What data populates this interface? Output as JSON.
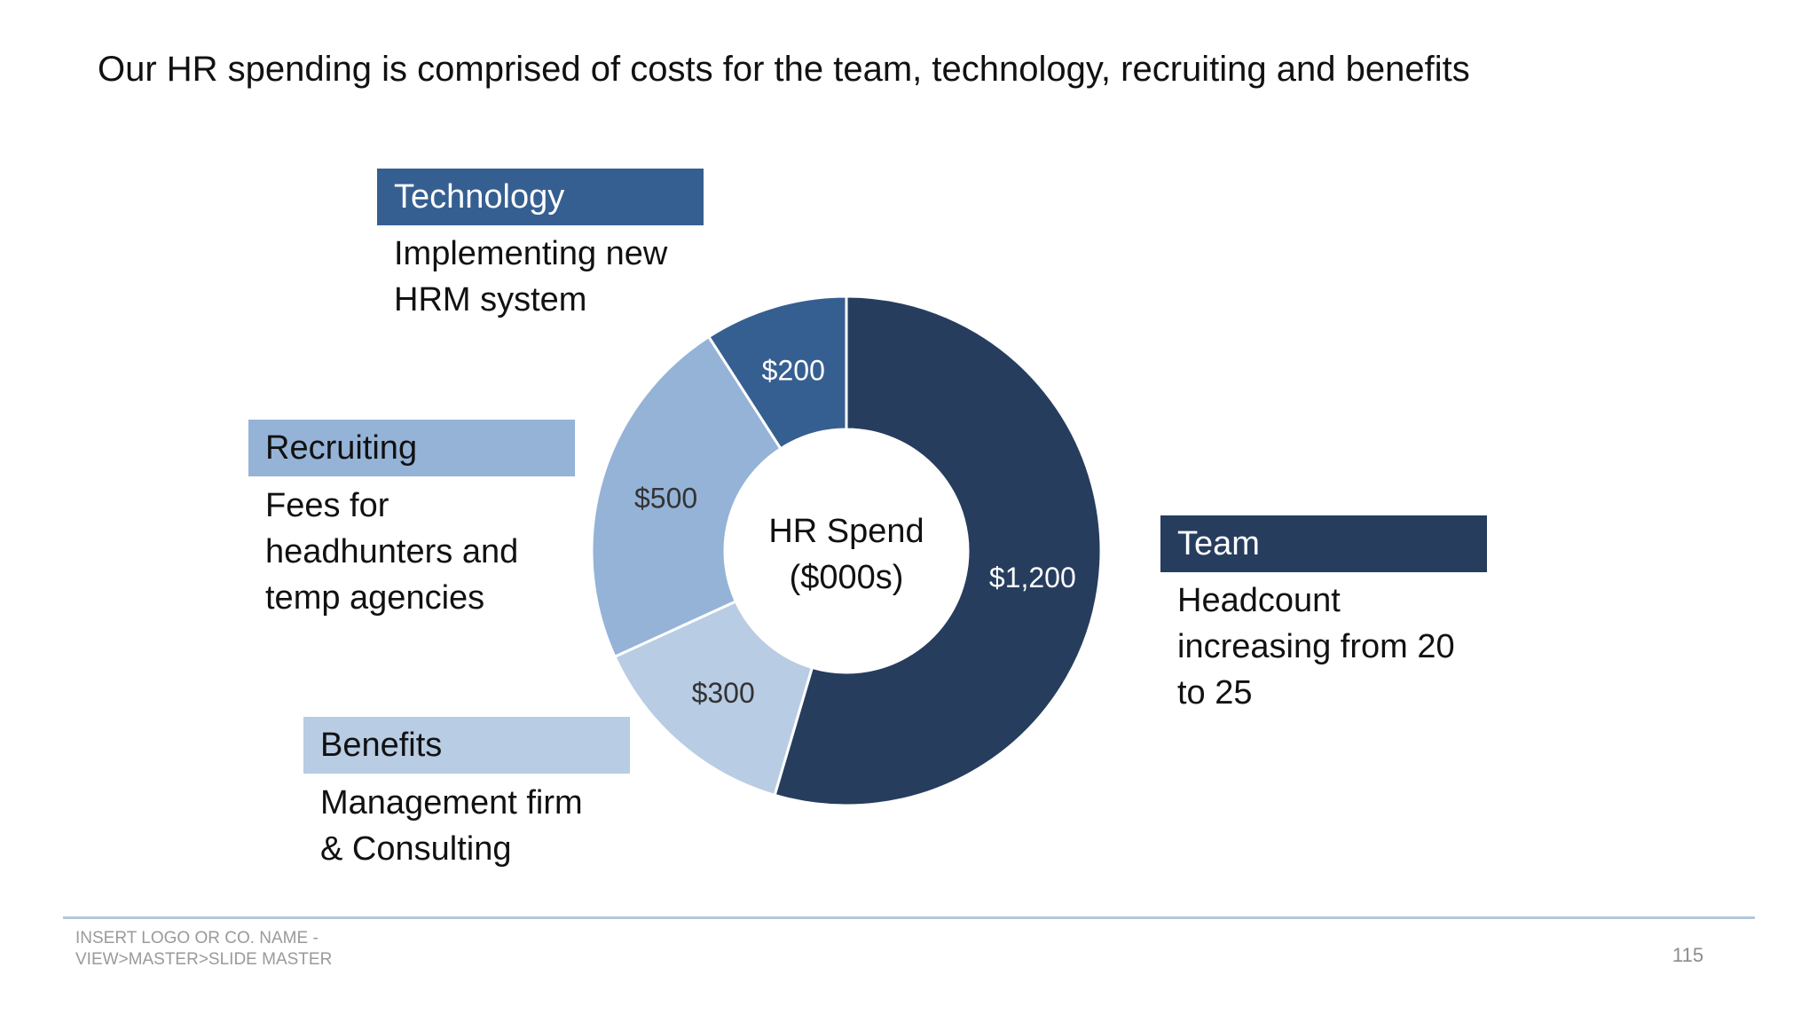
{
  "slide": {
    "title": "Our HR spending is comprised of costs for the team, technology, recruiting and benefits"
  },
  "callouts": {
    "technology": {
      "header": "Technology",
      "lines": [
        "Implementing new",
        "HRM system"
      ],
      "color": "#365f91",
      "text_color": "#ffffff"
    },
    "recruiting": {
      "header": "Recruiting",
      "lines": [
        "Fees for",
        "headhunters and",
        "temp agencies"
      ],
      "color": "#95b3d7",
      "text_color": "#111111"
    },
    "benefits": {
      "header": "Benefits",
      "lines": [
        "Management firm",
        "& Consulting"
      ],
      "color": "#b8cce4",
      "text_color": "#111111"
    },
    "team": {
      "header": "Team",
      "lines": [
        "Headcount",
        "increasing from 20",
        "to 25"
      ],
      "color": "#263d5e",
      "text_color": "#ffffff"
    }
  },
  "chart_data": {
    "type": "pie",
    "variant": "donut",
    "center_label": [
      "HR Spend",
      "($000s)"
    ],
    "start": "12 o'clock, clockwise",
    "slices": [
      {
        "name": "Team",
        "value": 1200,
        "label": "$1,200",
        "color": "#263d5e",
        "label_color": "#ffffff"
      },
      {
        "name": "Benefits",
        "value": 300,
        "label": "$300",
        "color": "#b8cce4",
        "label_color": "#333333"
      },
      {
        "name": "Recruiting",
        "value": 500,
        "label": "$500",
        "color": "#95b3d7",
        "label_color": "#333333"
      },
      {
        "name": "Technology",
        "value": 200,
        "label": "$200",
        "color": "#365f91",
        "label_color": "#ffffff"
      }
    ]
  },
  "footer": {
    "lines": [
      "INSERT LOGO OR CO. NAME -",
      "VIEW>MASTER>SLIDE MASTER"
    ],
    "page_number": "115"
  }
}
